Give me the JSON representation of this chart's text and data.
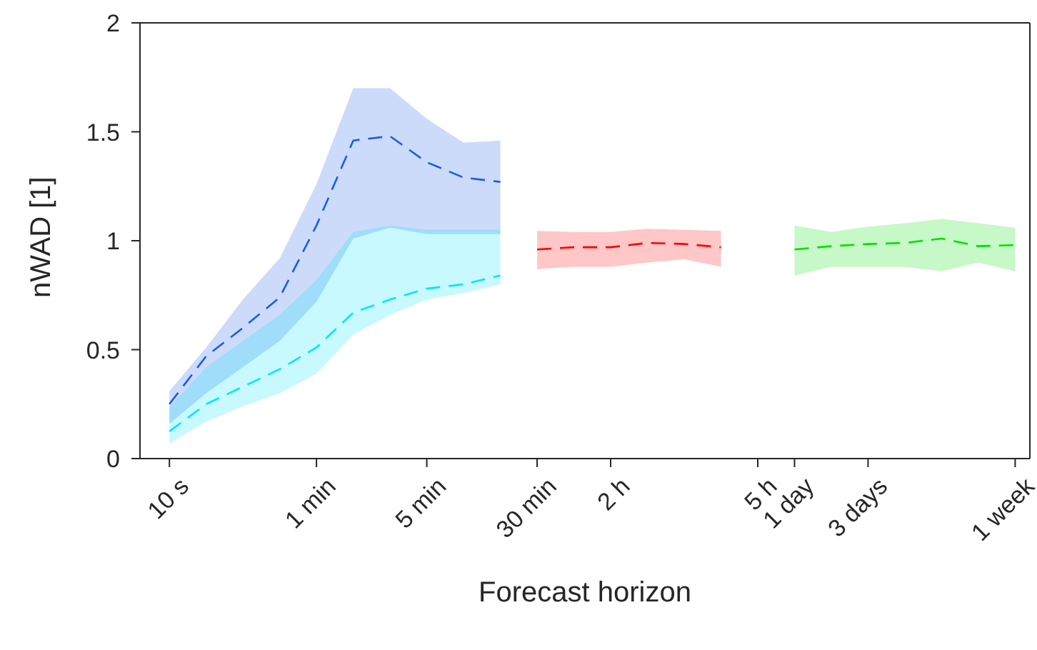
{
  "chart_data": {
    "type": "line",
    "xlabel": "Forecast horizon",
    "ylabel": "nWAD [1]",
    "grid": false,
    "legend": false,
    "line_style": "dashed",
    "categories": [
      "10 s",
      null,
      null,
      null,
      "1 min",
      null,
      null,
      "5 min",
      null,
      null,
      "30 min",
      null,
      "2 h",
      null,
      null,
      null,
      "5 h",
      "1 day",
      null,
      "3 days",
      null,
      null,
      null,
      "1 week"
    ],
    "ylim": [
      0,
      2
    ],
    "yticks": [
      0,
      0.5,
      1,
      1.5,
      2
    ],
    "series": [
      {
        "color": "#1a5ce6",
        "values": [
          0.25,
          0.47,
          0.6,
          0.74,
          1.07,
          1.46,
          1.48,
          1.36,
          1.29,
          1.27,
          null,
          null,
          null,
          null,
          null,
          null,
          null,
          null,
          null,
          null,
          null,
          null,
          null,
          null
        ],
        "lower": [
          0.16,
          0.3,
          0.42,
          0.54,
          0.72,
          1.01,
          1.06,
          1.03,
          1.03,
          1.03,
          null,
          null,
          null,
          null,
          null,
          null,
          null,
          null,
          null,
          null,
          null,
          null,
          null,
          null
        ],
        "upper": [
          0.31,
          0.51,
          0.73,
          0.92,
          1.26,
          1.7,
          1.7,
          1.56,
          1.45,
          1.46,
          null,
          null,
          null,
          null,
          null,
          null,
          null,
          null,
          null,
          null,
          null,
          null,
          null,
          null
        ]
      },
      {
        "color": "#00e5ff",
        "values": [
          0.125,
          0.25,
          0.33,
          0.41,
          0.51,
          0.67,
          0.73,
          0.78,
          0.8,
          0.84,
          null,
          null,
          null,
          null,
          null,
          null,
          null,
          null,
          null,
          null,
          null,
          null,
          null,
          null
        ],
        "lower": [
          0.07,
          0.17,
          0.24,
          0.3,
          0.39,
          0.57,
          0.66,
          0.73,
          0.76,
          0.8,
          null,
          null,
          null,
          null,
          null,
          null,
          null,
          null,
          null,
          null,
          null,
          null,
          null,
          null
        ],
        "upper": [
          0.235,
          0.42,
          0.54,
          0.66,
          0.82,
          1.04,
          1.07,
          1.05,
          1.05,
          1.05,
          null,
          null,
          null,
          null,
          null,
          null,
          null,
          null,
          null,
          null,
          null,
          null,
          null,
          null
        ]
      },
      {
        "color": "#ff0000",
        "values": [
          null,
          null,
          null,
          null,
          null,
          null,
          null,
          null,
          null,
          null,
          0.96,
          0.97,
          0.97,
          0.99,
          0.985,
          0.97,
          null,
          null,
          null,
          null,
          null,
          null,
          null,
          null
        ],
        "lower": [
          null,
          null,
          null,
          null,
          null,
          null,
          null,
          null,
          null,
          null,
          0.87,
          0.88,
          0.88,
          0.9,
          0.915,
          0.88,
          null,
          null,
          null,
          null,
          null,
          null,
          null,
          null
        ],
        "upper": [
          null,
          null,
          null,
          null,
          null,
          null,
          null,
          null,
          null,
          null,
          1.045,
          1.04,
          1.04,
          1.055,
          1.05,
          1.045,
          null,
          null,
          null,
          null,
          null,
          null,
          null,
          null
        ]
      },
      {
        "color": "#00e000",
        "values": [
          null,
          null,
          null,
          null,
          null,
          null,
          null,
          null,
          null,
          null,
          null,
          null,
          null,
          null,
          null,
          null,
          null,
          0.96,
          0.975,
          0.985,
          0.99,
          1.01,
          0.975,
          0.98
        ],
        "lower": [
          null,
          null,
          null,
          null,
          null,
          null,
          null,
          null,
          null,
          null,
          null,
          null,
          null,
          null,
          null,
          null,
          null,
          0.84,
          0.88,
          0.88,
          0.88,
          0.86,
          0.9,
          0.86
        ],
        "upper": [
          null,
          null,
          null,
          null,
          null,
          null,
          null,
          null,
          null,
          null,
          null,
          null,
          null,
          null,
          null,
          null,
          null,
          1.07,
          1.04,
          1.065,
          1.08,
          1.1,
          1.08,
          1.06
        ]
      }
    ]
  }
}
